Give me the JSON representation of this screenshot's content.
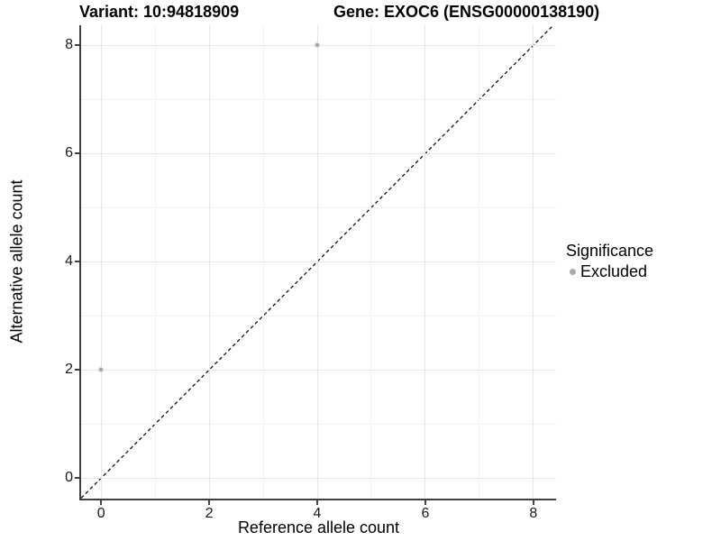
{
  "chart_data": {
    "type": "scatter",
    "title_left": "Variant: 10:94818909",
    "title_right": "Gene: EXOC6 (ENSG00000138190)",
    "xlabel": "Reference allele count",
    "ylabel": "Alternative allele count",
    "xlim": [
      -0.37,
      8.42
    ],
    "ylim": [
      -0.38,
      8.37
    ],
    "x_ticks": [
      0,
      2,
      4,
      6,
      8
    ],
    "y_ticks": [
      0,
      2,
      4,
      6,
      8
    ],
    "x_grid": [
      0,
      1,
      2,
      3,
      4,
      5,
      6,
      7,
      8
    ],
    "y_grid": [
      0,
      1,
      2,
      3,
      4,
      5,
      6,
      7,
      8
    ],
    "grid": "on",
    "identity_line": {
      "slope": 1,
      "intercept": 0,
      "style": "dashed"
    },
    "series": [
      {
        "name": "Excluded",
        "color": "#ababab",
        "points": [
          {
            "x": 0,
            "y": 2
          },
          {
            "x": 4,
            "y": 8
          }
        ]
      }
    ],
    "legend": {
      "title": "Significance",
      "position": "right",
      "items": [
        {
          "label": "Excluded",
          "color": "#ababab"
        }
      ]
    }
  },
  "colors": {
    "background": "#ffffff",
    "grid_major": "#e6e6e6",
    "grid_minor": "#f2f2f2",
    "axis_line": "#404040",
    "tick_label": "#1a1a1a",
    "title": "#000000",
    "point": "#ababab",
    "identity_line": "#000000"
  }
}
